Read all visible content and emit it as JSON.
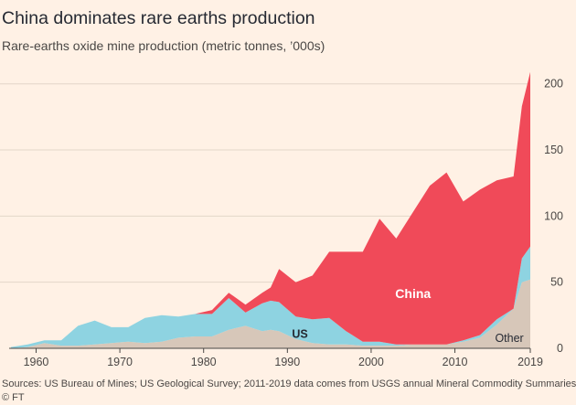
{
  "header": {
    "title": "China dominates rare earths production",
    "subtitle": "Rare-earths oxide mine production (metric tonnes, ’000s)"
  },
  "footer": {
    "source": "Sources: US Bureau of Mines; US Geological Survey; 2011-2019 data comes from USGS annual Mineral Commodity Summaries",
    "credit": "© FT"
  },
  "chart_data": {
    "type": "area",
    "stacked": true,
    "title": "China dominates rare earths production",
    "subtitle": "Rare-earths oxide mine production (metric tonnes, ’000s)",
    "x": [
      1957,
      1959,
      1961,
      1963,
      1965,
      1967,
      1969,
      1971,
      1973,
      1975,
      1977,
      1979,
      1981,
      1983,
      1985,
      1987,
      1988,
      1989,
      1991,
      1993,
      1995,
      1997,
      1999,
      2001,
      2003,
      2005,
      2007,
      2009,
      2011,
      2013,
      2015,
      2017,
      2018,
      2019
    ],
    "series": [
      {
        "name": "Other",
        "color": "#d7c7b9",
        "values": [
          0,
          1,
          4,
          2,
          2,
          3,
          4,
          5,
          4,
          5,
          8,
          9,
          9,
          14,
          17,
          13,
          14,
          13,
          7,
          4,
          3,
          3,
          2,
          2,
          2,
          3,
          3,
          3,
          5,
          8,
          18,
          30,
          50,
          52
        ]
      },
      {
        "name": "US",
        "color": "#8ed3e1",
        "values": [
          1,
          2,
          2,
          4,
          15,
          18,
          12,
          11,
          19,
          20,
          16,
          17,
          17,
          24,
          10,
          21,
          22,
          22,
          17,
          18,
          20,
          10,
          3,
          3,
          1,
          0,
          0,
          0,
          1,
          2,
          4,
          0,
          18,
          25
        ]
      },
      {
        "name": "China",
        "color": "#f04a59",
        "values": [
          0,
          0,
          0,
          0,
          0,
          0,
          0,
          0,
          0,
          0,
          0,
          0,
          3,
          4,
          6,
          8,
          10,
          25,
          26,
          33,
          50,
          60,
          68,
          93,
          80,
          100,
          120,
          130,
          105,
          110,
          105,
          100,
          115,
          132
        ]
      }
    ],
    "labels": [
      "China",
      "US",
      "Other"
    ],
    "xticks": [
      1960,
      1970,
      1980,
      1990,
      2000,
      2010,
      2019
    ],
    "yticks": [
      0,
      50,
      100,
      150,
      200
    ],
    "xlim": [
      1957,
      2019
    ],
    "ylim": [
      0,
      215
    ],
    "grid": "horizontal",
    "axis_position": "right",
    "colors": {
      "background": "#fff1e5",
      "grid": "#e3d6c9",
      "text": "#4a4745"
    }
  }
}
